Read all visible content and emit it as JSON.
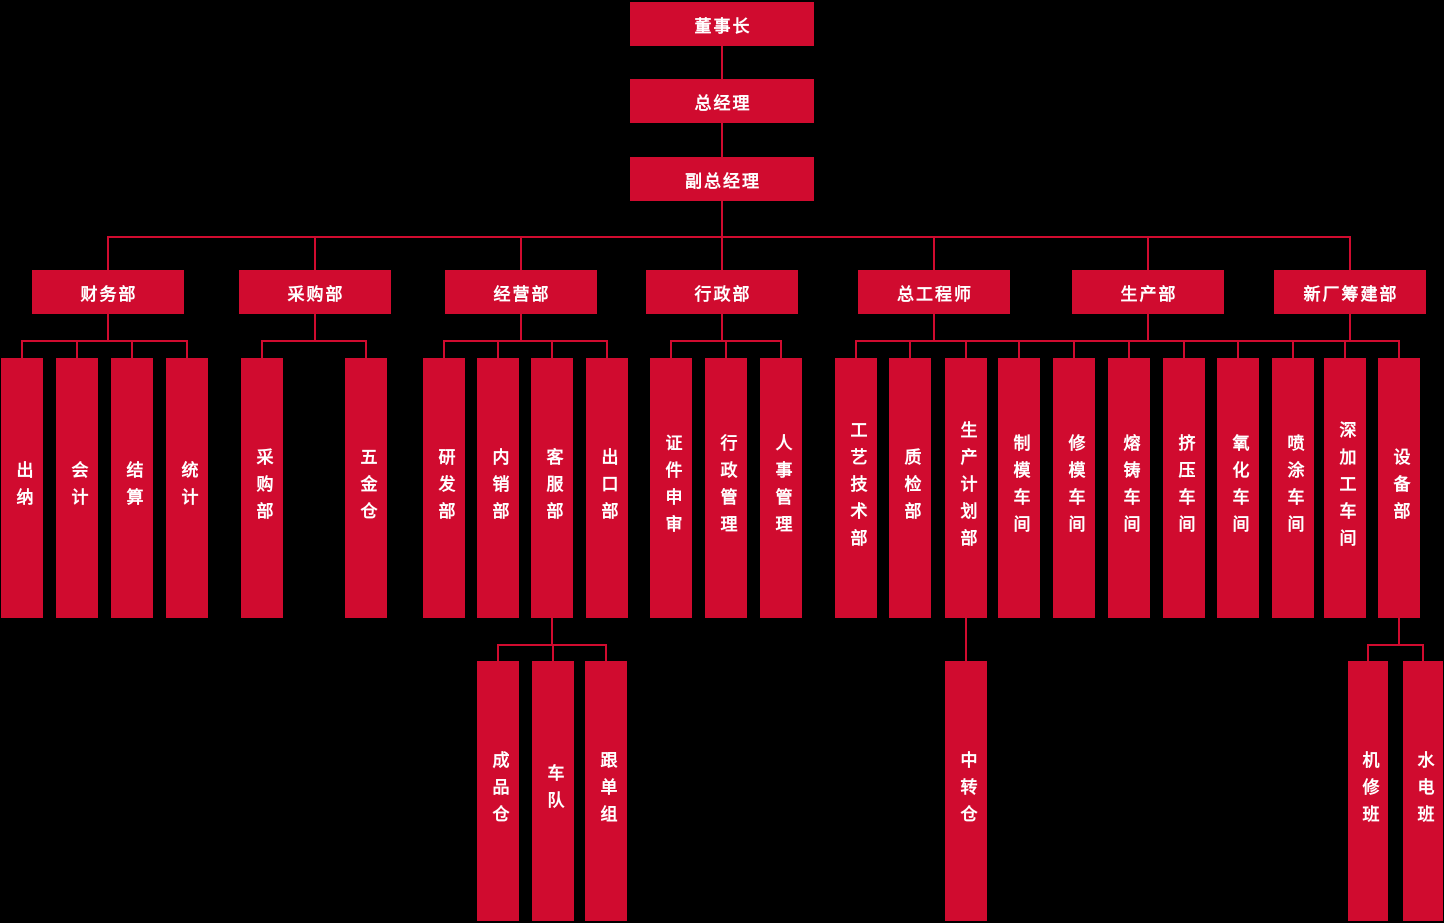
{
  "colors": {
    "background": "#000000",
    "box": "#d00b2f",
    "line": "#d00b2f",
    "text": "#ffffff"
  },
  "org": {
    "chain": [
      {
        "label": "董事长"
      },
      {
        "label": "总经理"
      },
      {
        "label": "副总经理"
      }
    ],
    "departments": [
      {
        "label": "财务部",
        "children": [
          {
            "label": "出纳"
          },
          {
            "label": "会计"
          },
          {
            "label": "结算"
          },
          {
            "label": "统计"
          }
        ]
      },
      {
        "label": "采购部",
        "children": [
          {
            "label": "采购部"
          },
          {
            "label": "五金仓"
          }
        ]
      },
      {
        "label": "经营部",
        "children": [
          {
            "label": "研发部"
          },
          {
            "label": "内销部"
          },
          {
            "label": "客服部",
            "children": [
              {
                "label": "成品仓"
              },
              {
                "label": "车队"
              },
              {
                "label": "跟单组"
              }
            ]
          },
          {
            "label": "出口部"
          }
        ]
      },
      {
        "label": "行政部",
        "children": [
          {
            "label": "证件申审"
          },
          {
            "label": "行政管理"
          },
          {
            "label": "人事管理"
          }
        ]
      },
      {
        "label": "总工程师",
        "children": [
          {
            "label": "工艺技术部"
          },
          {
            "label": "质检部"
          },
          {
            "label": "生产计划部",
            "children": [
              {
                "label": "中转仓"
              }
            ]
          }
        ]
      },
      {
        "label": "生产部",
        "children": [
          {
            "label": "制模车间"
          },
          {
            "label": "修模车间"
          },
          {
            "label": "熔铸车间"
          },
          {
            "label": "挤压车间"
          },
          {
            "label": "氧化车间"
          },
          {
            "label": "喷涂车间"
          }
        ]
      },
      {
        "label": "新厂筹建部",
        "children": [
          {
            "label": "深加工车间"
          },
          {
            "label": "设备部",
            "children": [
              {
                "label": "机修班"
              },
              {
                "label": "水电班"
              }
            ]
          }
        ]
      }
    ]
  }
}
